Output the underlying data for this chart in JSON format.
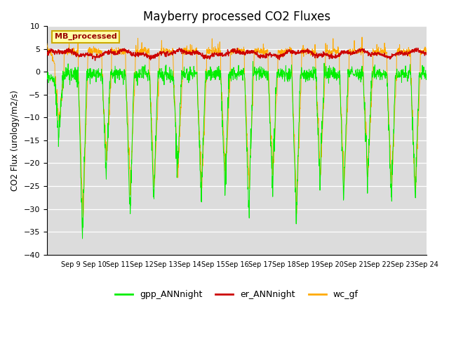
{
  "title": "Mayberry processed CO2 Fluxes",
  "ylabel": "CO2 Flux (urology/m2/s)",
  "ylim": [
    -40,
    10
  ],
  "yticks": [
    -40,
    -35,
    -30,
    -25,
    -20,
    -15,
    -10,
    -5,
    0,
    5,
    10
  ],
  "colors": {
    "gpp": "#00ee00",
    "er": "#cc0000",
    "wc": "#ffaa00"
  },
  "legend_label": "MB_processed",
  "legend_box_color": "#ffffaa",
  "legend_box_edge": "#ccaa00",
  "bg_color": "#dcdcdc",
  "n_days": 16,
  "start_day": 8,
  "points_per_day": 96,
  "figsize": [
    6.4,
    4.8
  ],
  "dpi": 100
}
